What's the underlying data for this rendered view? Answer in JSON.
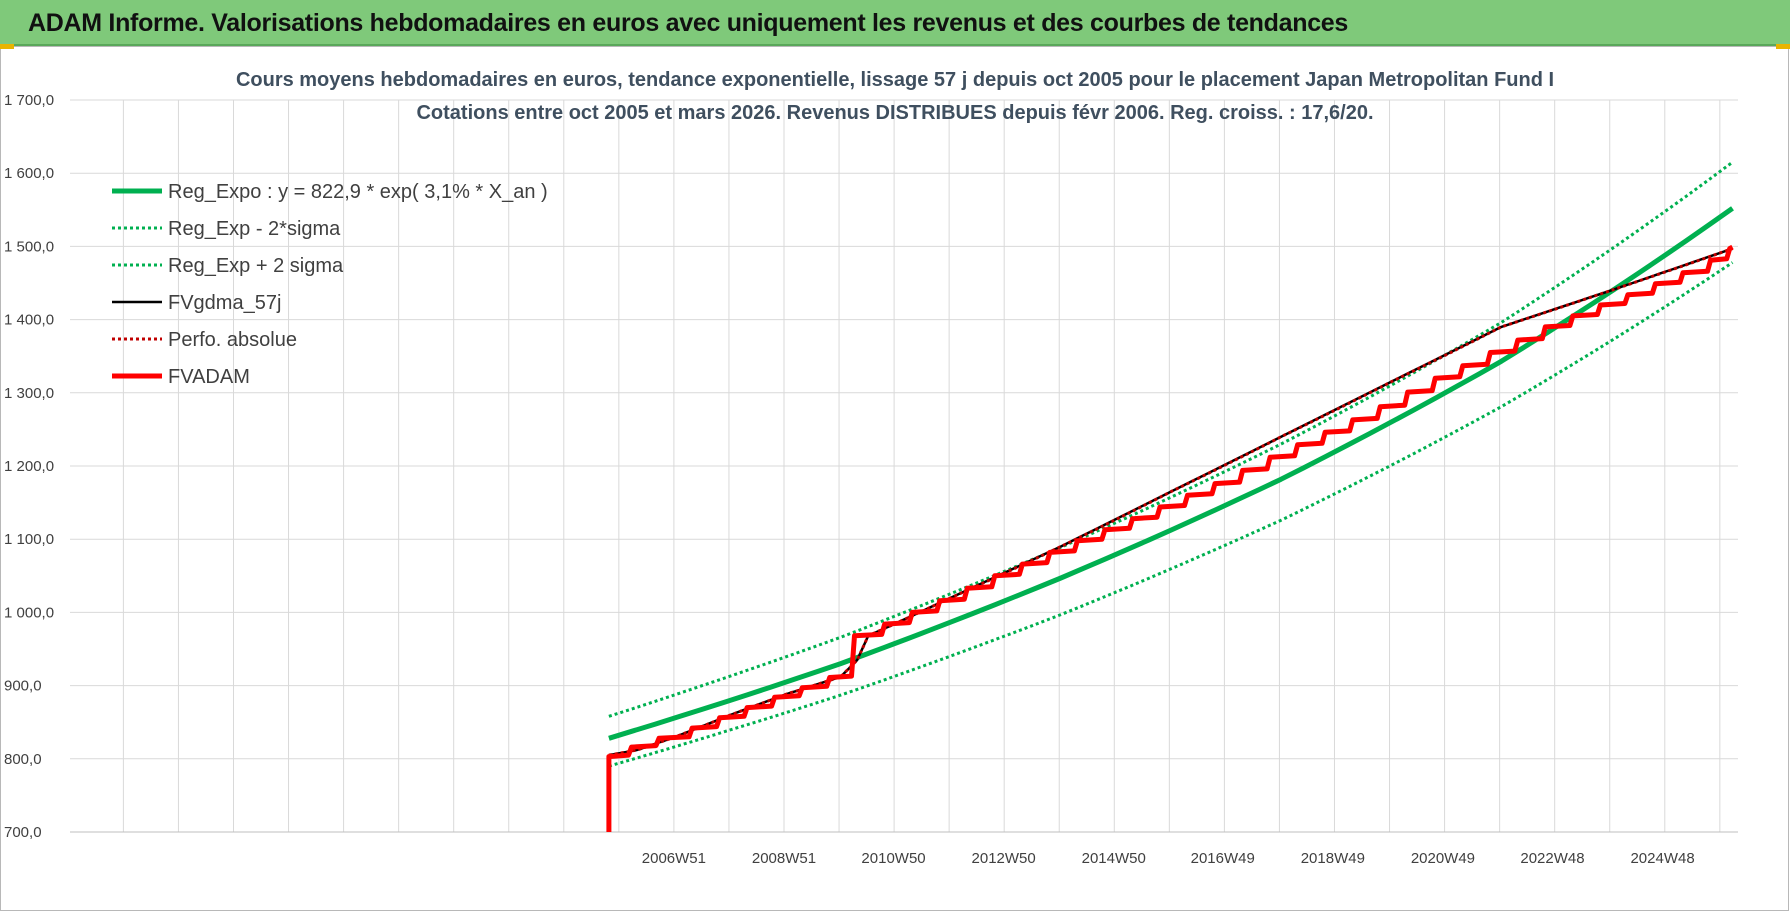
{
  "header": {
    "title": "ADAM Informe. Valorisations hebdomadaires en euros avec uniquement les revenus et des courbes de tendances"
  },
  "colors": {
    "green": "#00b050",
    "red": "#ff0000",
    "black": "#000000",
    "darkred": "#c00000",
    "header_bg": "#7fc97a"
  },
  "chart_data": {
    "type": "line",
    "title": "Cours moyens hebdomadaires en euros, tendance exponentielle, lissage 57 j depuis oct 2005 pour le placement Japan Metropolitan Fund I",
    "subtitle": "Cotations entre oct 2005 et mars 2026. Revenus DISTRIBUES depuis févr 2006. Reg. croiss. : 17,6/20.",
    "xlabel": "",
    "ylabel": "",
    "ylim": [
      700,
      1700
    ],
    "y_ticks": [
      "1 700,0",
      "1 600,0",
      "1 500,0",
      "1 400,0",
      "1 300,0",
      "1 200,0",
      "1 100,0",
      "1 000,0",
      "900,0",
      "800,0",
      "700,0"
    ],
    "x_range_years": [
      1996.0,
      2026.3
    ],
    "x_tick_labels": [
      {
        "label": "2006W51",
        "year": 2006.97
      },
      {
        "label": "2008W51",
        "year": 2008.97
      },
      {
        "label": "2010W50",
        "year": 2010.96
      },
      {
        "label": "2012W50",
        "year": 2012.96
      },
      {
        "label": "2014W50",
        "year": 2014.96
      },
      {
        "label": "2016W49",
        "year": 2016.94
      },
      {
        "label": "2018W49",
        "year": 2018.94
      },
      {
        "label": "2020W49",
        "year": 2020.94
      },
      {
        "label": "2022W48",
        "year": 2022.93
      },
      {
        "label": "2024W48",
        "year": 2024.93
      }
    ],
    "grid": true,
    "legend_position": "top-left",
    "series": [
      {
        "name": "Reg_Expo : y = 822,9 * exp( 3,1% *  X_an )",
        "style": "thick-solid",
        "color": "#00b050",
        "x": [
          2005.79,
          2010.0,
          2014.0,
          2018.0,
          2022.0,
          2026.2
        ],
        "y": [
          828,
          930,
          1047,
          1182,
          1343,
          1552
        ]
      },
      {
        "name": "Reg_Exp - 2*sigma",
        "style": "dotted",
        "color": "#00b050",
        "x": [
          2005.79,
          2010.0,
          2014.0,
          2018.0,
          2022.0,
          2026.2
        ],
        "y": [
          790,
          887,
          997,
          1126,
          1281,
          1478
        ]
      },
      {
        "name": "Reg_Exp + 2 sigma",
        "style": "dotted",
        "color": "#00b050",
        "x": [
          2005.79,
          2010.0,
          2014.0,
          2018.0,
          2022.0,
          2026.2
        ],
        "y": [
          858,
          966,
          1089,
          1230,
          1396,
          1615
        ]
      },
      {
        "name": "FVgdma_57j",
        "style": "solid",
        "color": "#000000",
        "x": [
          2005.79,
          2006.3,
          2007.0,
          2008.0,
          2009.0,
          2010.0,
          2010.3,
          2010.5,
          2011.0,
          2012.0,
          2014.0,
          2016.0,
          2018.0,
          2020.0,
          2022.0,
          2024.0,
          2026.2
        ],
        "y": [
          805,
          812,
          830,
          860,
          888,
          912,
          935,
          968,
          985,
          1020,
          1090,
          1165,
          1240,
          1315,
          1390,
          1440,
          1497
        ]
      },
      {
        "name": "Perfo. absolue",
        "style": "dotted",
        "color": "#c00000",
        "x": [
          2005.79,
          2006.3,
          2007.0,
          2008.0,
          2009.0,
          2010.0,
          2010.3,
          2010.5,
          2011.0,
          2012.0,
          2014.0,
          2016.0,
          2018.0,
          2020.0,
          2022.0,
          2024.0,
          2026.2
        ],
        "y": [
          805,
          812,
          830,
          860,
          888,
          912,
          935,
          968,
          985,
          1020,
          1090,
          1165,
          1240,
          1315,
          1390,
          1440,
          1497
        ]
      },
      {
        "name": "FVADAM",
        "style": "thick-step",
        "color": "#ff0000",
        "start": {
          "x": 2005.79,
          "y_from": 700,
          "y_to": 803
        },
        "steps": [
          {
            "x": 2006.2,
            "y": 816
          },
          {
            "x": 2006.7,
            "y": 828
          },
          {
            "x": 2007.3,
            "y": 842
          },
          {
            "x": 2007.8,
            "y": 856
          },
          {
            "x": 2008.3,
            "y": 870
          },
          {
            "x": 2008.8,
            "y": 884
          },
          {
            "x": 2009.3,
            "y": 897
          },
          {
            "x": 2009.8,
            "y": 911
          },
          {
            "x": 2010.25,
            "y": 968
          },
          {
            "x": 2010.8,
            "y": 984
          },
          {
            "x": 2011.3,
            "y": 1000
          },
          {
            "x": 2011.8,
            "y": 1016
          },
          {
            "x": 2012.3,
            "y": 1033
          },
          {
            "x": 2012.8,
            "y": 1050
          },
          {
            "x": 2013.3,
            "y": 1066
          },
          {
            "x": 2013.8,
            "y": 1082
          },
          {
            "x": 2014.3,
            "y": 1098
          },
          {
            "x": 2014.8,
            "y": 1113
          },
          {
            "x": 2015.3,
            "y": 1128
          },
          {
            "x": 2015.8,
            "y": 1144
          },
          {
            "x": 2016.3,
            "y": 1160
          },
          {
            "x": 2016.8,
            "y": 1176
          },
          {
            "x": 2017.3,
            "y": 1194
          },
          {
            "x": 2017.8,
            "y": 1212
          },
          {
            "x": 2018.3,
            "y": 1229
          },
          {
            "x": 2018.8,
            "y": 1246
          },
          {
            "x": 2019.3,
            "y": 1263
          },
          {
            "x": 2019.8,
            "y": 1281
          },
          {
            "x": 2020.3,
            "y": 1301
          },
          {
            "x": 2020.8,
            "y": 1320
          },
          {
            "x": 2021.3,
            "y": 1337
          },
          {
            "x": 2021.8,
            "y": 1355
          },
          {
            "x": 2022.3,
            "y": 1372
          },
          {
            "x": 2022.8,
            "y": 1390
          },
          {
            "x": 2023.3,
            "y": 1405
          },
          {
            "x": 2023.8,
            "y": 1420
          },
          {
            "x": 2024.3,
            "y": 1434
          },
          {
            "x": 2024.8,
            "y": 1449
          },
          {
            "x": 2025.3,
            "y": 1464
          },
          {
            "x": 2025.8,
            "y": 1481
          },
          {
            "x": 2026.15,
            "y": 1497
          }
        ],
        "end_x": 2026.2
      }
    ]
  }
}
